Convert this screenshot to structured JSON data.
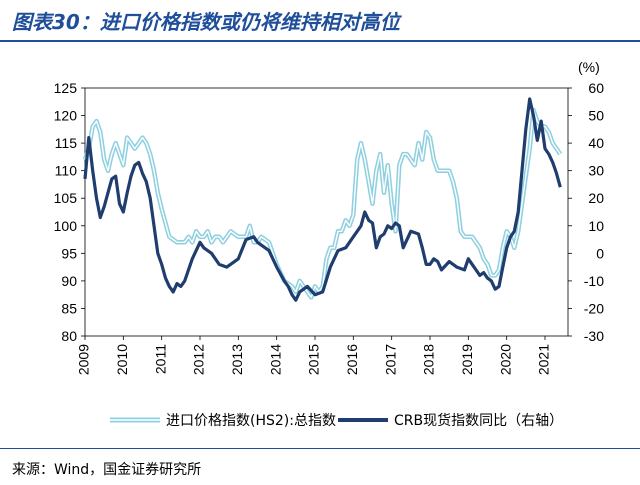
{
  "header": {
    "title": "图表30：进口价格指数或仍将维持相对高位"
  },
  "footer": {
    "source": "来源：Wind，国金证券研究所"
  },
  "chart_data": {
    "type": "line",
    "x_ticks": [
      "2009",
      "2010",
      "2011",
      "2012",
      "2013",
      "2014",
      "2015",
      "2016",
      "2017",
      "2018",
      "2019",
      "2020",
      "2021"
    ],
    "xlim": [
      2009,
      2021.6
    ],
    "left_axis": {
      "ylim": [
        80,
        125
      ],
      "ticks": [
        "80",
        "85",
        "90",
        "95",
        "100",
        "105",
        "110",
        "115",
        "120",
        "125"
      ]
    },
    "right_axis": {
      "unit_label": "(%)",
      "ylim": [
        -30,
        60
      ],
      "ticks": [
        "-30",
        "-20",
        "-10",
        "0",
        "10",
        "20",
        "30",
        "40",
        "50",
        "60"
      ]
    },
    "series": [
      {
        "name": "进口价格指数(HS2):总指数",
        "axis": "left",
        "color": "#8fd0e0",
        "style": "double",
        "x": [
          2009.0,
          2009.1,
          2009.2,
          2009.3,
          2009.4,
          2009.5,
          2009.6,
          2009.7,
          2009.8,
          2009.9,
          2010.0,
          2010.1,
          2010.2,
          2010.3,
          2010.4,
          2010.5,
          2010.6,
          2010.7,
          2010.8,
          2010.9,
          2011.0,
          2011.2,
          2011.4,
          2011.6,
          2011.7,
          2011.8,
          2011.9,
          2012.0,
          2012.1,
          2012.2,
          2012.3,
          2012.4,
          2012.5,
          2012.6,
          2012.8,
          2013.0,
          2013.2,
          2013.3,
          2013.4,
          2013.5,
          2013.6,
          2013.8,
          2014.0,
          2014.2,
          2014.4,
          2014.5,
          2014.6,
          2014.7,
          2014.8,
          2014.9,
          2015.0,
          2015.1,
          2015.2,
          2015.3,
          2015.4,
          2015.5,
          2015.6,
          2015.7,
          2015.8,
          2015.9,
          2016.0,
          2016.1,
          2016.2,
          2016.3,
          2016.4,
          2016.5,
          2016.6,
          2016.7,
          2016.8,
          2016.9,
          2017.0,
          2017.1,
          2017.2,
          2017.3,
          2017.4,
          2017.5,
          2017.6,
          2017.7,
          2017.8,
          2017.9,
          2018.0,
          2018.1,
          2018.2,
          2018.3,
          2018.4,
          2018.5,
          2018.6,
          2018.7,
          2018.8,
          2018.9,
          2019.0,
          2019.1,
          2019.2,
          2019.3,
          2019.4,
          2019.5,
          2019.6,
          2019.7,
          2019.8,
          2019.9,
          2020.0,
          2020.1,
          2020.2,
          2020.3,
          2020.4,
          2020.5,
          2020.6,
          2020.7,
          2020.8,
          2020.9,
          2021.0,
          2021.1,
          2021.2,
          2021.3,
          2021.4
        ],
        "values": [
          112,
          114,
          118,
          119,
          117,
          112,
          110,
          113,
          115,
          113,
          111,
          116,
          115,
          114,
          115,
          116,
          115,
          113,
          110,
          106,
          103,
          98,
          97,
          97,
          98,
          97,
          99,
          98,
          98,
          99,
          97,
          98,
          98,
          97,
          99,
          98,
          98,
          100,
          97,
          97,
          98,
          97,
          93,
          90,
          89,
          88,
          90,
          89,
          88,
          87,
          89,
          88,
          89,
          94,
          96,
          96,
          99,
          99,
          101,
          100,
          102,
          112,
          115,
          112,
          108,
          104,
          110,
          113,
          106,
          111,
          104,
          99,
          111,
          113,
          113,
          112,
          111,
          115,
          112,
          117,
          116,
          112,
          110,
          110,
          110,
          110,
          108,
          105,
          99,
          98,
          98,
          98,
          97,
          96,
          94,
          93,
          91,
          91,
          92,
          96,
          99,
          98,
          96,
          99,
          104,
          109,
          114,
          121,
          119,
          118,
          118,
          117,
          115,
          114,
          113
        ]
      },
      {
        "name": "CRB现货指数同比（右轴）",
        "axis": "right",
        "color": "#1f3d6e",
        "style": "solid",
        "x": [
          2009.0,
          2009.1,
          2009.2,
          2009.3,
          2009.4,
          2009.5,
          2009.6,
          2009.7,
          2009.8,
          2009.9,
          2010.0,
          2010.1,
          2010.2,
          2010.3,
          2010.4,
          2010.5,
          2010.6,
          2010.7,
          2010.8,
          2010.9,
          2011.0,
          2011.1,
          2011.2,
          2011.3,
          2011.4,
          2011.5,
          2011.6,
          2011.8,
          2012.0,
          2012.1,
          2012.3,
          2012.5,
          2012.7,
          2012.9,
          2013.0,
          2013.2,
          2013.4,
          2013.5,
          2013.6,
          2013.8,
          2014.0,
          2014.2,
          2014.3,
          2014.4,
          2014.5,
          2014.6,
          2014.8,
          2015.0,
          2015.2,
          2015.4,
          2015.6,
          2015.8,
          2016.0,
          2016.1,
          2016.2,
          2016.3,
          2016.4,
          2016.5,
          2016.6,
          2016.7,
          2016.8,
          2016.9,
          2017.0,
          2017.1,
          2017.2,
          2017.3,
          2017.5,
          2017.7,
          2017.8,
          2017.9,
          2018.0,
          2018.1,
          2018.2,
          2018.3,
          2018.5,
          2018.7,
          2018.9,
          2019.0,
          2019.1,
          2019.2,
          2019.3,
          2019.4,
          2019.5,
          2019.6,
          2019.7,
          2019.8,
          2019.9,
          2020.0,
          2020.1,
          2020.2,
          2020.3,
          2020.4,
          2020.5,
          2020.6,
          2020.7,
          2020.8,
          2020.9,
          2021.0,
          2021.1,
          2021.2,
          2021.3,
          2021.4
        ],
        "values": [
          27,
          42,
          30,
          20,
          13,
          17,
          22,
          27,
          28,
          18,
          15,
          22,
          28,
          32,
          33,
          29,
          26,
          20,
          10,
          0,
          -4,
          -9,
          -12,
          -14,
          -11,
          -12,
          -10,
          -2,
          4,
          2,
          0,
          -4,
          -5,
          -3,
          -2,
          5,
          6,
          4,
          3,
          1,
          -5,
          -10,
          -12,
          -15,
          -17,
          -14,
          -12,
          -15,
          -14,
          -5,
          1,
          2,
          6,
          8,
          10,
          15,
          12,
          11,
          2,
          6,
          7,
          10,
          9,
          11,
          10,
          2,
          8,
          7,
          2,
          -4,
          -4,
          -2,
          -3,
          -6,
          -3,
          -5,
          -6,
          -2,
          -4,
          -6,
          -8,
          -7,
          -9,
          -10,
          -13,
          -12,
          -5,
          2,
          6,
          8,
          15,
          30,
          45,
          56,
          50,
          41,
          48,
          38,
          36,
          33,
          29,
          24
        ]
      }
    ],
    "legend_position": "bottom"
  }
}
